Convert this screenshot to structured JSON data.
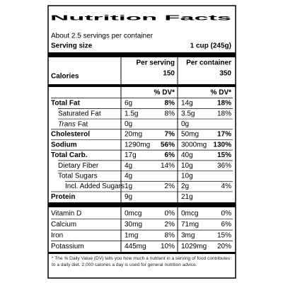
{
  "title": "Nutrition Facts",
  "servings": "About 2.5 servings per container",
  "serving_size": {
    "label": "Serving size",
    "value": "1 cup (245g)"
  },
  "columns": [
    "Per serving",
    "Per container"
  ],
  "calories": {
    "label": "Calories",
    "values": [
      "150",
      "350"
    ]
  },
  "dv_header": [
    "% DV*",
    "% DV*"
  ],
  "rows": [
    {
      "label": "Total Fat",
      "bold": true,
      "indent": 0,
      "serving": {
        "amount": "6g",
        "dv": "8%"
      },
      "container": {
        "amount": "14g",
        "dv": "18%"
      }
    },
    {
      "label": "Saturated Fat",
      "bold": false,
      "indent": 1,
      "serving": {
        "amount": "1.5g",
        "dv": "8%"
      },
      "container": {
        "amount": "3.5g",
        "dv": "18%"
      }
    },
    {
      "label_italic": "Trans",
      "label": "Fat",
      "bold": false,
      "indent": 1,
      "serving": {
        "amount": "0g"
      },
      "container": {
        "amount": "0g"
      }
    },
    {
      "label": "Cholesterol",
      "bold": true,
      "indent": 0,
      "serving": {
        "amount": "20mg",
        "dv": "7%"
      },
      "container": {
        "amount": "50mg",
        "dv": "17%"
      }
    },
    {
      "label": "Sodium",
      "bold": true,
      "indent": 0,
      "serving": {
        "amount": "1290mg",
        "dv": "56%"
      },
      "container": {
        "amount": "3000mg",
        "dv": "130%"
      }
    },
    {
      "label": "Total Carb.",
      "bold": true,
      "indent": 0,
      "serving": {
        "amount": "17g",
        "dv": "6%"
      },
      "container": {
        "amount": "40g",
        "dv": "15%"
      }
    },
    {
      "label": "Dietary Fiber",
      "bold": false,
      "indent": 1,
      "serving": {
        "amount": "4g",
        "dv": "14%"
      },
      "container": {
        "amount": "10g",
        "dv": "36%"
      }
    },
    {
      "label": "Total Sugars",
      "bold": false,
      "indent": 1,
      "serving": {
        "amount": "4g"
      },
      "container": {
        "amount": "10g"
      }
    },
    {
      "label": "Incl. Added Sugars",
      "bold": false,
      "indent": 2,
      "serving": {
        "amount": "1g",
        "dv": "2%"
      },
      "container": {
        "amount": "2g",
        "dv": "4%"
      }
    },
    {
      "label": "Protein",
      "bold": true,
      "indent": 0,
      "serving": {
        "amount": "9g"
      },
      "container": {
        "amount": "21g"
      }
    }
  ],
  "vitamins": [
    {
      "label": "Vitamin D",
      "serving": {
        "amount": "0mcg",
        "dv": "0%"
      },
      "container": {
        "amount": "0mcg",
        "dv": "0%"
      }
    },
    {
      "label": "Calcium",
      "serving": {
        "amount": "30mg",
        "dv": "2%"
      },
      "container": {
        "amount": "71mg",
        "dv": "6%"
      }
    },
    {
      "label": "Iron",
      "serving": {
        "amount": "1mg",
        "dv": "8%"
      },
      "container": {
        "amount": "3mg",
        "dv": "15%"
      }
    },
    {
      "label": "Potassium",
      "serving": {
        "amount": "445mg",
        "dv": "10%"
      },
      "container": {
        "amount": "1029mg",
        "dv": "20%"
      }
    }
  ],
  "footnote": "* The % Daily Value (DV) tells you how much a nutrient in a serving of food contributes to a daily diet. 2,000 calories a day is used for general nutrition advice."
}
